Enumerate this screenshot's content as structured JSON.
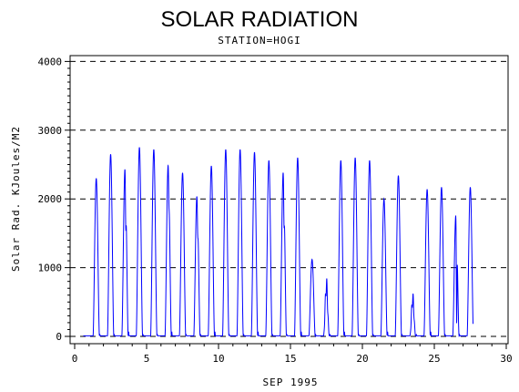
{
  "chart_data": {
    "type": "line",
    "title": "SOLAR RADIATION",
    "subtitle": "STATION=HOGI",
    "xlabel": "SEP 1995",
    "ylabel": "Solar Rad. KJoules/M2",
    "xlim": [
      0,
      30
    ],
    "ylim": [
      0,
      4000
    ],
    "xticks": [
      "0",
      "5",
      "10",
      "15",
      "20",
      "25",
      "30"
    ],
    "yticks": [
      "0",
      "1000",
      "2000",
      "3000",
      "4000"
    ],
    "grid": "horizontal dashed",
    "colors": {
      "series": "#0000ff",
      "grid": "#000000",
      "axis": "#000000"
    },
    "series": [
      {
        "daily_peaks": [
          {
            "day": 1,
            "peak": 2300,
            "shape": "single"
          },
          {
            "day": 2,
            "peak": 2650,
            "shape": "single"
          },
          {
            "day": 3,
            "peak": 2450,
            "shape": "double",
            "dip": 1750
          },
          {
            "day": 4,
            "peak": 2750,
            "shape": "single"
          },
          {
            "day": 5,
            "peak": 2720,
            "shape": "single"
          },
          {
            "day": 6,
            "peak": 2500,
            "shape": "double",
            "dip": 2150
          },
          {
            "day": 7,
            "peak": 2380,
            "shape": "single"
          },
          {
            "day": 8,
            "peak": 2050,
            "shape": "double",
            "dip": 1650
          },
          {
            "day": 9,
            "peak": 2480,
            "shape": "single"
          },
          {
            "day": 10,
            "peak": 2720,
            "shape": "single"
          },
          {
            "day": 11,
            "peak": 2720,
            "shape": "single"
          },
          {
            "day": 12,
            "peak": 2680,
            "shape": "single"
          },
          {
            "day": 13,
            "peak": 2560,
            "shape": "single"
          },
          {
            "day": 14,
            "peak": 2400,
            "shape": "double",
            "dip": 1800
          },
          {
            "day": 15,
            "peak": 2600,
            "shape": "single"
          },
          {
            "day": 16,
            "peak": 1120,
            "shape": "single"
          },
          {
            "day": 17,
            "peak": 880,
            "shape": "low"
          },
          {
            "day": 18,
            "peak": 2560,
            "shape": "single"
          },
          {
            "day": 19,
            "peak": 2600,
            "shape": "single"
          },
          {
            "day": 20,
            "peak": 2560,
            "shape": "single"
          },
          {
            "day": 21,
            "peak": 2000,
            "shape": "single"
          },
          {
            "day": 22,
            "peak": 2340,
            "shape": "single"
          },
          {
            "day": 23,
            "peak": 650,
            "shape": "low"
          },
          {
            "day": 24,
            "peak": 2140,
            "shape": "single"
          },
          {
            "day": 25,
            "peak": 2170,
            "shape": "single"
          },
          {
            "day": 26,
            "peak": 1780,
            "shape": "double",
            "dip": 200
          },
          {
            "day": 27,
            "peak": 2170,
            "shape": "single"
          }
        ]
      }
    ]
  }
}
